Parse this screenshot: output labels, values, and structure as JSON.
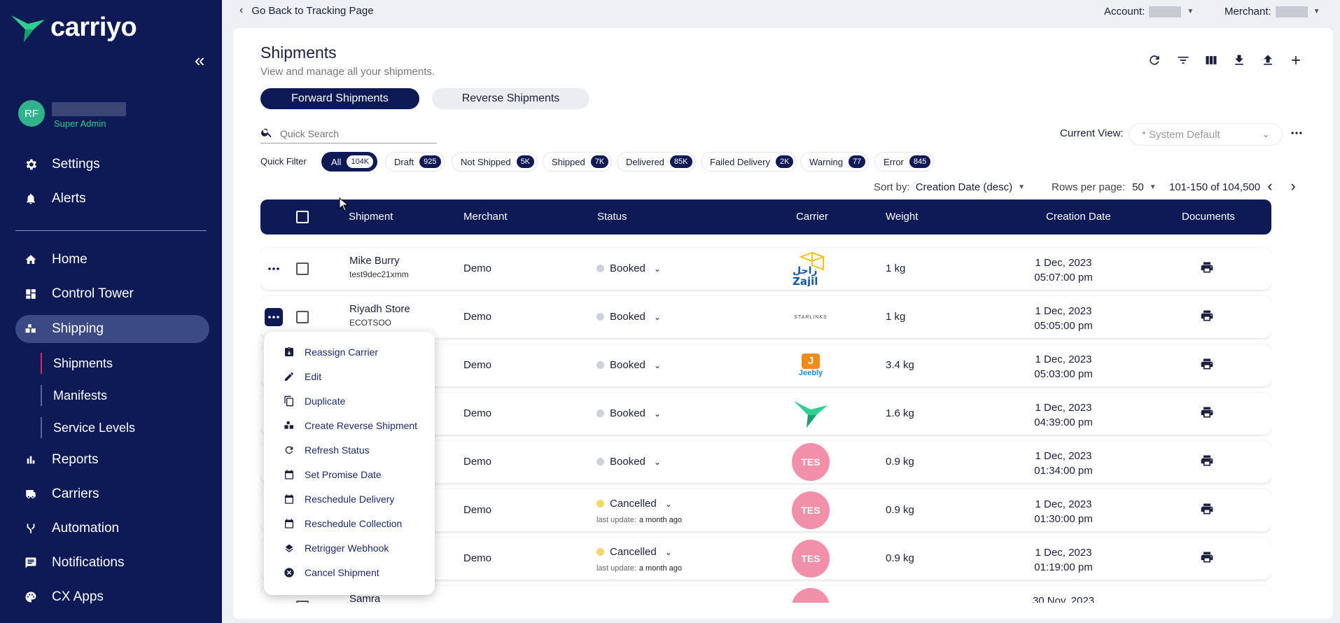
{
  "app": {
    "brand": "carriyo",
    "colors": {
      "sidebar": "#0e1a55",
      "accent": "#2fb38a",
      "active_sub": "#e0245e"
    }
  },
  "user": {
    "initials": "RF",
    "role": "Super Admin"
  },
  "sidebar": {
    "top_items": [
      {
        "label": "Settings",
        "icon": "gear-icon"
      },
      {
        "label": "Alerts",
        "icon": "bell-icon"
      }
    ],
    "items": [
      {
        "label": "Home",
        "icon": "home-icon"
      },
      {
        "label": "Control Tower",
        "icon": "dashboard-icon"
      },
      {
        "label": "Shipping",
        "icon": "shipping-icon"
      },
      {
        "label": "Reports",
        "icon": "bar-chart-icon"
      },
      {
        "label": "Carriers",
        "icon": "truck-icon"
      },
      {
        "label": "Automation",
        "icon": "automation-icon"
      },
      {
        "label": "Notifications",
        "icon": "message-icon"
      },
      {
        "label": "CX Apps",
        "icon": "palette-icon"
      }
    ],
    "sub_items": [
      {
        "label": "Shipments"
      },
      {
        "label": "Manifests"
      },
      {
        "label": "Service Levels"
      }
    ]
  },
  "topbar": {
    "back": "Go Back to Tracking Page",
    "account_label": "Account:",
    "merchant_label": "Merchant:"
  },
  "page": {
    "title": "Shipments",
    "subtitle": "View and manage all your shipments."
  },
  "tabs": {
    "forward": "Forward Shipments",
    "reverse": "Reverse Shipments"
  },
  "search": {
    "placeholder": "Quick Search"
  },
  "view": {
    "label": "Current View:",
    "value": "* System Default"
  },
  "quick_filter": {
    "label": "Quick Filter",
    "chips": [
      {
        "label": "All",
        "count": "104K"
      },
      {
        "label": "Draft",
        "count": "925"
      },
      {
        "label": "Not Shipped",
        "count": "5K"
      },
      {
        "label": "Shipped",
        "count": "7K"
      },
      {
        "label": "Delivered",
        "count": "85K"
      },
      {
        "label": "Failed Delivery",
        "count": "2K"
      },
      {
        "label": "Warning",
        "count": "77"
      },
      {
        "label": "Error",
        "count": "845"
      }
    ]
  },
  "sort": {
    "label": "Sort by:",
    "value": "Creation Date (desc)"
  },
  "pagination": {
    "rows_label": "Rows per page:",
    "rows_value": "50",
    "range": "101-150 of 104,500"
  },
  "table": {
    "headers": {
      "shipment": "Shipment",
      "merchant": "Merchant",
      "status": "Status",
      "carrier": "Carrier",
      "weight": "Weight",
      "creation_date": "Creation Date",
      "documents": "Documents"
    },
    "rows": [
      {
        "name": "Mike Burry",
        "id": "test9dec21xmm",
        "merchant": "Demo",
        "status": "Booked",
        "carrier": "Zajil",
        "weight": "1 kg",
        "date": "1 Dec, 2023",
        "time": "05:07:00 pm"
      },
      {
        "name": "Riyadh Store",
        "id": "ECOTSOO",
        "merchant": "Demo",
        "status": "Booked",
        "carrier": "STARLINKS",
        "weight": "1 kg",
        "date": "1 Dec, 2023",
        "time": "05:05:00 pm"
      },
      {
        "name": "",
        "id": "",
        "merchant": "Demo",
        "status": "Booked",
        "carrier": "Jeebly",
        "weight": "3.4 kg",
        "date": "1 Dec, 2023",
        "time": "05:03:00 pm"
      },
      {
        "name": "",
        "id": "",
        "merchant": "Demo",
        "status": "Booked",
        "carrier": "carriyo",
        "weight": "1.6 kg",
        "date": "1 Dec, 2023",
        "time": "04:39:00 pm"
      },
      {
        "name": "",
        "id": "",
        "merchant": "Demo",
        "status": "Booked",
        "carrier": "TES",
        "weight": "0.9 kg",
        "date": "1 Dec, 2023",
        "time": "01:34:00 pm"
      },
      {
        "name": "",
        "id": "",
        "merchant": "Demo",
        "status": "Cancelled",
        "last_update_label": "last update:",
        "last_update": "a month ago",
        "carrier": "TES",
        "weight": "0.9 kg",
        "date": "1 Dec, 2023",
        "time": "01:30:00 pm"
      },
      {
        "name": "",
        "id": "",
        "merchant": "Demo",
        "status": "Cancelled",
        "last_update_label": "last update:",
        "last_update": "a month ago",
        "carrier": "TES",
        "weight": "0.9 kg",
        "date": "1 Dec, 2023",
        "time": "01:19:00 pm"
      },
      {
        "name": "Samra",
        "id": "",
        "merchant": "",
        "status": "",
        "carrier": "",
        "weight": "",
        "date": "30 Nov, 2023",
        "time": ""
      }
    ]
  },
  "context_menu": [
    {
      "label": "Reassign Carrier",
      "icon": "reassign-icon"
    },
    {
      "label": "Edit",
      "icon": "pencil-icon"
    },
    {
      "label": "Duplicate",
      "icon": "copy-icon"
    },
    {
      "label": "Create Reverse Shipment",
      "icon": "reverse-icon"
    },
    {
      "label": "Refresh Status",
      "icon": "refresh-icon"
    },
    {
      "label": "Set Promise Date",
      "icon": "calendar-icon"
    },
    {
      "label": "Reschedule Delivery",
      "icon": "calendar-icon"
    },
    {
      "label": "Reschedule Collection",
      "icon": "calendar-icon"
    },
    {
      "label": "Retrigger Webhook",
      "icon": "layers-icon"
    },
    {
      "label": "Cancel Shipment",
      "icon": "cancel-circle-icon"
    }
  ]
}
